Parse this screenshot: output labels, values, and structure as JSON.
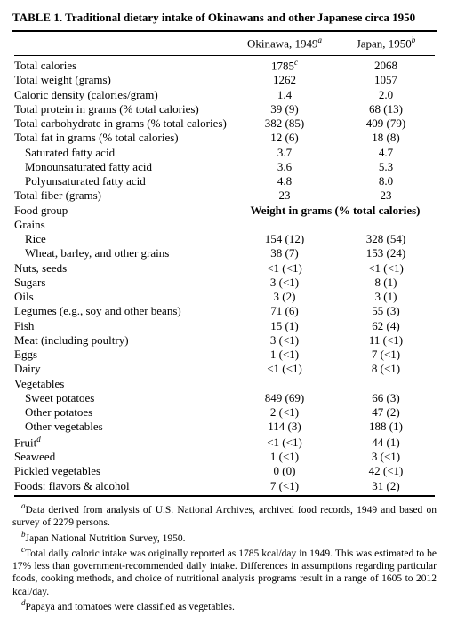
{
  "title": "TABLE 1.  Traditional dietary intake of Okinawans and other Japanese circa 1950",
  "columns": {
    "okinawa": {
      "label": "Okinawa, 1949",
      "note_mark": "a"
    },
    "japan": {
      "label": "Japan, 1950",
      "note_mark": "b"
    }
  },
  "rows_top": [
    {
      "label": "Total calories",
      "ok": "1785",
      "ok_mark": "c",
      "jp": "2068"
    },
    {
      "label": "Total weight (grams)",
      "ok": "1262",
      "jp": "1057"
    },
    {
      "label": "Caloric density (calories/gram)",
      "ok": "1.4",
      "jp": "2.0"
    },
    {
      "label": "Total protein in grams (% total calories)",
      "ok": "39 (9)",
      "jp": "68 (13)"
    },
    {
      "label": "Total carbohydrate in grams (% total calories)",
      "ok": "382 (85)",
      "jp": "409 (79)"
    },
    {
      "label": "Total fat in grams (% total calories)",
      "ok": "12 (6)",
      "jp": "18 (8)"
    },
    {
      "label": "Saturated fatty acid",
      "indent": 1,
      "ok": "3.7",
      "jp": "4.7"
    },
    {
      "label": "Monounsaturated fatty acid",
      "indent": 1,
      "ok": "3.6",
      "jp": "5.3"
    },
    {
      "label": "Polyunsaturated fatty acid",
      "indent": 1,
      "ok": "4.8",
      "jp": "8.0"
    },
    {
      "label": "Total fiber (grams)",
      "ok": "23",
      "jp": "23"
    }
  ],
  "food_group_label": "Food group",
  "food_group_header": "Weight in grams (% total calories)",
  "rows_foods": [
    {
      "label": "Grains",
      "group": true
    },
    {
      "label": "Rice",
      "indent": 1,
      "ok": "154 (12)",
      "jp": "328 (54)"
    },
    {
      "label": "Wheat, barley, and other grains",
      "indent": 1,
      "ok": "38 (7)",
      "jp": "153 (24)"
    },
    {
      "label": "Nuts, seeds",
      "ok": "<1 (<1)",
      "jp": "<1 (<1)"
    },
    {
      "label": "Sugars",
      "ok": "3 (<1)",
      "jp": "8 (1)"
    },
    {
      "label": "Oils",
      "ok": "3 (2)",
      "jp": "3 (1)"
    },
    {
      "label": "Legumes (e.g., soy and other beans)",
      "ok": "71 (6)",
      "jp": "55 (3)"
    },
    {
      "label": "Fish",
      "ok": "15 (1)",
      "jp": "62 (4)"
    },
    {
      "label": "Meat (including poultry)",
      "ok": "3 (<1)",
      "jp": "11 (<1)"
    },
    {
      "label": "Eggs",
      "ok": "1 (<1)",
      "jp": "7 (<1)"
    },
    {
      "label": "Dairy",
      "ok": "<1 (<1)",
      "jp": "8 (<1)"
    },
    {
      "label": "Vegetables",
      "group": true
    },
    {
      "label": "Sweet potatoes",
      "indent": 1,
      "ok": "849 (69)",
      "jp": "66 (3)"
    },
    {
      "label": "Other potatoes",
      "indent": 1,
      "ok": "2 (<1)",
      "jp": "47 (2)"
    },
    {
      "label": "Other vegetables",
      "indent": 1,
      "ok": "114 (3)",
      "jp": "188 (1)"
    },
    {
      "label": "Fruit",
      "label_mark": "d",
      "ok": "<1 (<1)",
      "jp": "44 (1)"
    },
    {
      "label": "Seaweed",
      "ok": "1 (<1)",
      "jp": "3 (<1)"
    },
    {
      "label": "Pickled vegetables",
      "ok": "0 (0)",
      "jp": "42 (<1)"
    },
    {
      "label": "Foods: flavors & alcohol",
      "ok": "7 (<1)",
      "jp": "31 (2)"
    }
  ],
  "footnotes": [
    {
      "mark": "a",
      "text": "Data derived from analysis of U.S. National Archives, archived food records, 1949 and based on survey of 2279 persons."
    },
    {
      "mark": "b",
      "text": "Japan National Nutrition Survey, 1950."
    },
    {
      "mark": "c",
      "text": "Total daily caloric intake was originally reported as 1785 kcal/day in 1949. This was estimated to be 17% less than government-recommended daily intake. Differences in assumptions regarding particular foods, cooking methods, and choice of nutritional analysis programs result in a range of 1605 to 2012 kcal/day."
    },
    {
      "mark": "d",
      "text": "Papaya and tomatoes were classified as vegetables."
    }
  ]
}
